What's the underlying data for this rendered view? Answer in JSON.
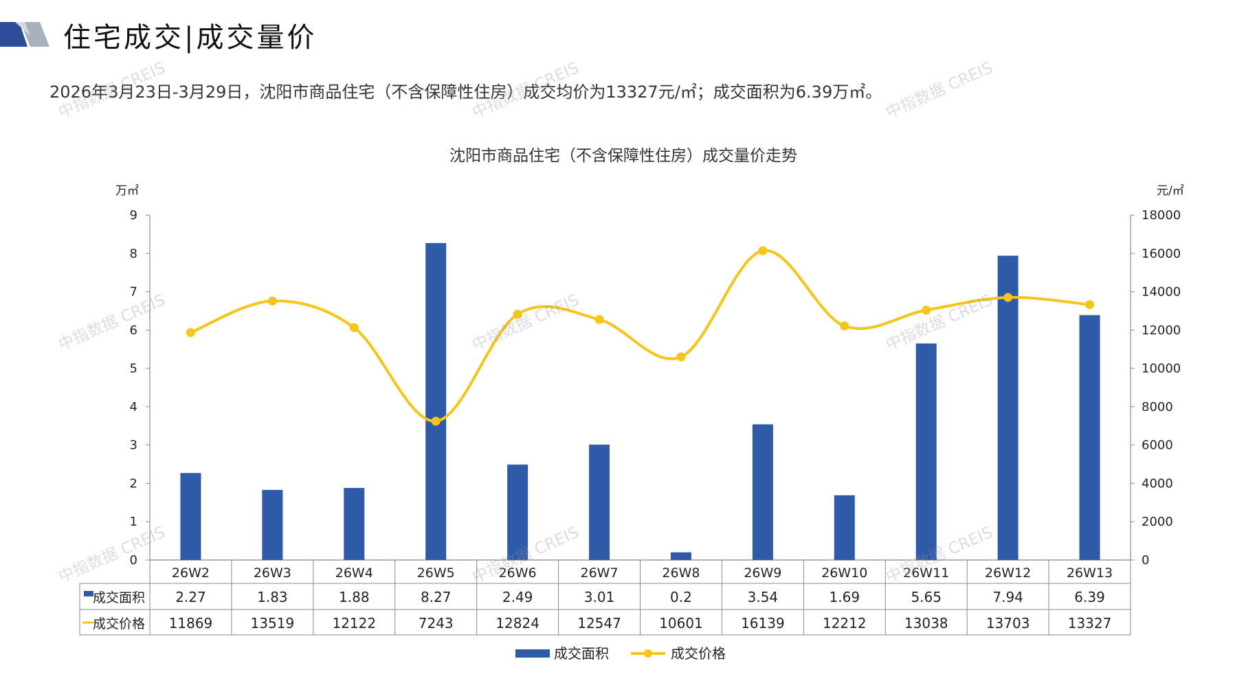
{
  "header": {
    "title": "住宅成交|成交量价",
    "summary": "2026年3月23日-3月29日，沈阳市商品住宅（不含保障性住房）成交均价为13327元/㎡；成交面积为6.39万㎡。"
  },
  "watermark_text": "中指数据 CREIS",
  "colors": {
    "bar": "#2F5AA8",
    "line": "#F5C518",
    "grid": "#888888",
    "logo_blue": "#2F4C9B",
    "logo_gray": "#A9B1BC"
  },
  "chart_data": {
    "type": "bar+line",
    "title": "沈阳市商品住宅（不含保障性住房）成交量价走势",
    "categories": [
      "26W2",
      "26W3",
      "26W4",
      "26W5",
      "26W6",
      "26W7",
      "26W8",
      "26W9",
      "26W10",
      "26W11",
      "26W12",
      "26W13"
    ],
    "series": [
      {
        "name": "成交面积",
        "type": "bar",
        "axis": "left",
        "values": [
          2.27,
          1.83,
          1.88,
          8.27,
          2.49,
          3.01,
          0.2,
          3.54,
          1.69,
          5.65,
          7.94,
          6.39
        ],
        "labels": [
          "2.27",
          "1.83",
          "1.88",
          "8.27",
          "2.49",
          "3.01",
          "0.2",
          "3.54",
          "1.69",
          "5.65",
          "7.94",
          "6.39"
        ]
      },
      {
        "name": "成交价格",
        "type": "line",
        "axis": "right",
        "smooth": true,
        "values": [
          11869,
          13519,
          12122,
          7243,
          12824,
          12547,
          10601,
          16139,
          12212,
          13038,
          13703,
          13327
        ],
        "labels": [
          "11869",
          "13519",
          "12122",
          "7243",
          "12824",
          "12547",
          "10601",
          "16139",
          "12212",
          "13038",
          "13703",
          "13327"
        ]
      }
    ],
    "y_left": {
      "unit": "万㎡",
      "min": 0,
      "max": 9,
      "ticks": [
        "0",
        "1",
        "2",
        "3",
        "4",
        "5",
        "6",
        "7",
        "8",
        "9"
      ]
    },
    "y_right": {
      "unit": "元/㎡",
      "min": 0,
      "max": 18000,
      "ticks": [
        "0",
        "2000",
        "4000",
        "6000",
        "8000",
        "10000",
        "12000",
        "14000",
        "16000",
        "18000"
      ]
    },
    "grid": false,
    "legend": "bottom",
    "data_table": true
  }
}
